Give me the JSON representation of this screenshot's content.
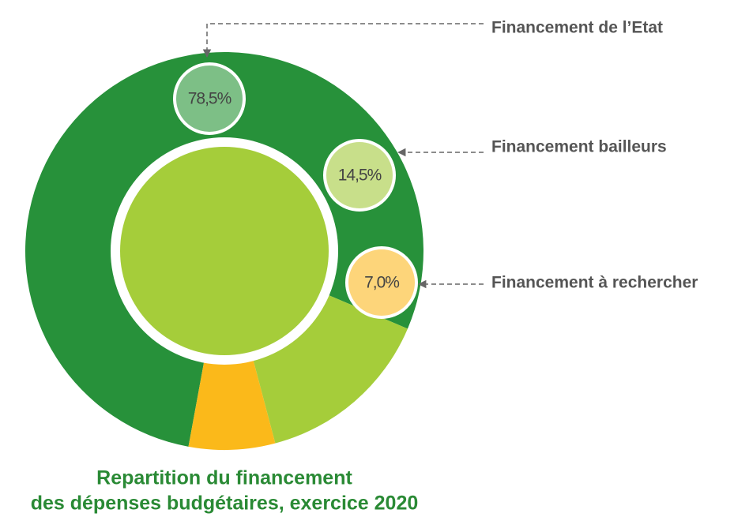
{
  "chart_data": {
    "type": "pie",
    "donut": true,
    "title": [
      "Repartition du financement",
      "des dépenses budgétaires, exercice 2020"
    ],
    "categories": [
      "Financement de l’Etat",
      "Financement bailleurs",
      "Financement à rechercher"
    ],
    "values": [
      78.5,
      14.5,
      7.0
    ],
    "value_labels": [
      "78,5%",
      "14,5%",
      "7,0%"
    ],
    "colors": [
      "#27913a",
      "#a5cd3a",
      "#fbb91a"
    ]
  }
}
